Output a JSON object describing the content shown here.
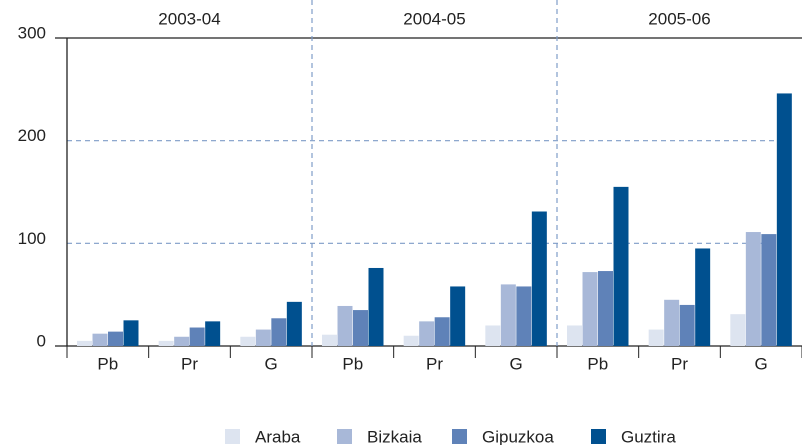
{
  "chart_data": {
    "type": "bar",
    "groups": [
      "2003-04",
      "2004-05",
      "2005-06"
    ],
    "categories": [
      "Pb",
      "Pr",
      "G",
      "Pb",
      "Pr",
      "G",
      "Pb",
      "Pr",
      "G"
    ],
    "series": [
      {
        "name": "Araba",
        "color": "#dde4f0",
        "values": [
          5,
          5,
          9,
          11,
          10,
          20,
          20,
          16,
          31
        ]
      },
      {
        "name": "Bizkaia",
        "color": "#a8b8d8",
        "values": [
          12,
          9,
          16,
          39,
          24,
          60,
          72,
          45,
          111
        ]
      },
      {
        "name": "Gipuzkoa",
        "color": "#5f82b8",
        "values": [
          14,
          18,
          27,
          35,
          28,
          58,
          73,
          40,
          109
        ]
      },
      {
        "name": "Guztira",
        "color": "#00508f",
        "values": [
          25,
          24,
          43,
          76,
          58,
          131,
          155,
          95,
          246
        ]
      }
    ],
    "ylim": [
      0,
      300
    ],
    "yticks": [
      0,
      100,
      200,
      300
    ],
    "grid": true,
    "legend": "bottom"
  }
}
